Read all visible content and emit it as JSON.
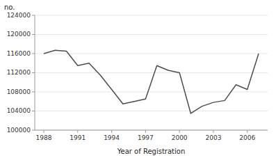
{
  "chart_data": {
    "type": "line",
    "x": [
      1988,
      1989,
      1990,
      1991,
      1992,
      1993,
      1994,
      1995,
      1996,
      1997,
      1998,
      1999,
      2000,
      2001,
      2002,
      2003,
      2004,
      2005,
      2006,
      2007
    ],
    "values": [
      116000,
      116700,
      116500,
      113500,
      114000,
      111500,
      108500,
      105500,
      106000,
      106500,
      113500,
      112500,
      112000,
      103500,
      105000,
      105800,
      106200,
      109500,
      108500,
      116000
    ],
    "color": "#4d4d4d",
    "xlabel": "Year of Registration",
    "ylabel": "no.",
    "xlim": [
      1987.2,
      2007.8
    ],
    "ylim": [
      100000,
      124000
    ],
    "xticks": [
      1988,
      1991,
      1994,
      1997,
      2000,
      2003,
      2006
    ],
    "yticks": [
      100000,
      104000,
      108000,
      112000,
      116000,
      120000,
      124000
    ]
  }
}
